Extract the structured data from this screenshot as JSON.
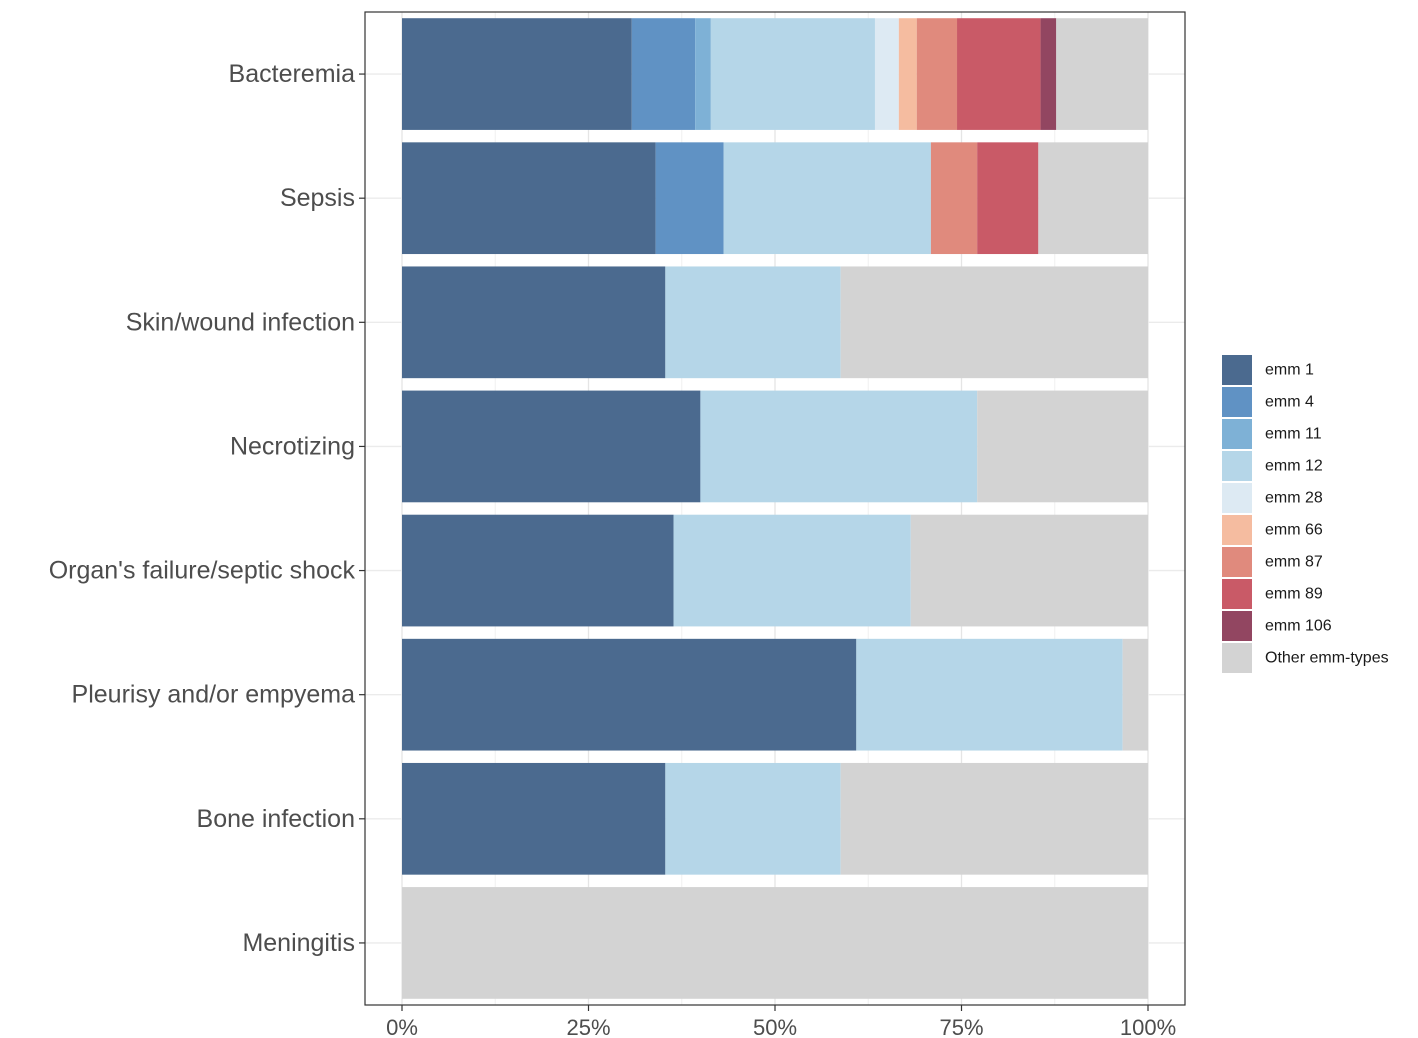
{
  "chart_data": {
    "type": "bar",
    "orientation": "horizontal",
    "stacked": true,
    "normalized": true,
    "title": "",
    "xlabel": "",
    "ylabel": "",
    "xlim": [
      0,
      1
    ],
    "x_ticks": [
      {
        "value": 0,
        "label": "0%"
      },
      {
        "value": 0.25,
        "label": "25%"
      },
      {
        "value": 0.5,
        "label": "50%"
      },
      {
        "value": 0.75,
        "label": "75%"
      },
      {
        "value": 1,
        "label": "100%"
      }
    ],
    "grid": true,
    "legend_position": "right",
    "categories": [
      "Bacteremia",
      "Sepsis",
      "Skin/wound infection",
      "Necrotizing",
      "Organ's failure/septic shock",
      "Pleurisy and/or empyema",
      "Bone infection",
      "Meningitis"
    ],
    "series": [
      {
        "name": "emm 1",
        "color": "#4b6a8f",
        "values": [
          0.308,
          0.34,
          0.353,
          0.4,
          0.364,
          0.609,
          0.353,
          0
        ]
      },
      {
        "name": "emm 4",
        "color": "#6092c4",
        "values": [
          0.085,
          0.091,
          0,
          0,
          0,
          0,
          0,
          0
        ]
      },
      {
        "name": "emm 11",
        "color": "#7eb1d6",
        "values": [
          0.021,
          0,
          0,
          0,
          0,
          0,
          0,
          0
        ]
      },
      {
        "name": "emm 12",
        "color": "#b5d6e8",
        "values": [
          0.22,
          0.278,
          0.235,
          0.371,
          0.318,
          0.357,
          0.235,
          0
        ]
      },
      {
        "name": "emm 28",
        "color": "#ddeaf3",
        "values": [
          0.032,
          0,
          0,
          0,
          0,
          0,
          0,
          0
        ]
      },
      {
        "name": "emm 66",
        "color": "#f5bca0",
        "values": [
          0.024,
          0,
          0,
          0,
          0,
          0,
          0,
          0
        ]
      },
      {
        "name": "emm 87",
        "color": "#e08a7d",
        "values": [
          0.054,
          0.062,
          0,
          0,
          0,
          0,
          0,
          0
        ]
      },
      {
        "name": "emm 89",
        "color": "#c95a67",
        "values": [
          0.112,
          0.082,
          0,
          0,
          0,
          0,
          0,
          0
        ]
      },
      {
        "name": "emm 106",
        "color": "#924661",
        "values": [
          0.021,
          0,
          0,
          0,
          0,
          0,
          0,
          0
        ]
      },
      {
        "name": "Other emm-types",
        "color": "#d3d3d3",
        "values": [
          0.123,
          0.147,
          0.412,
          0.229,
          0.318,
          0.034,
          0.412,
          1.0
        ]
      }
    ]
  }
}
